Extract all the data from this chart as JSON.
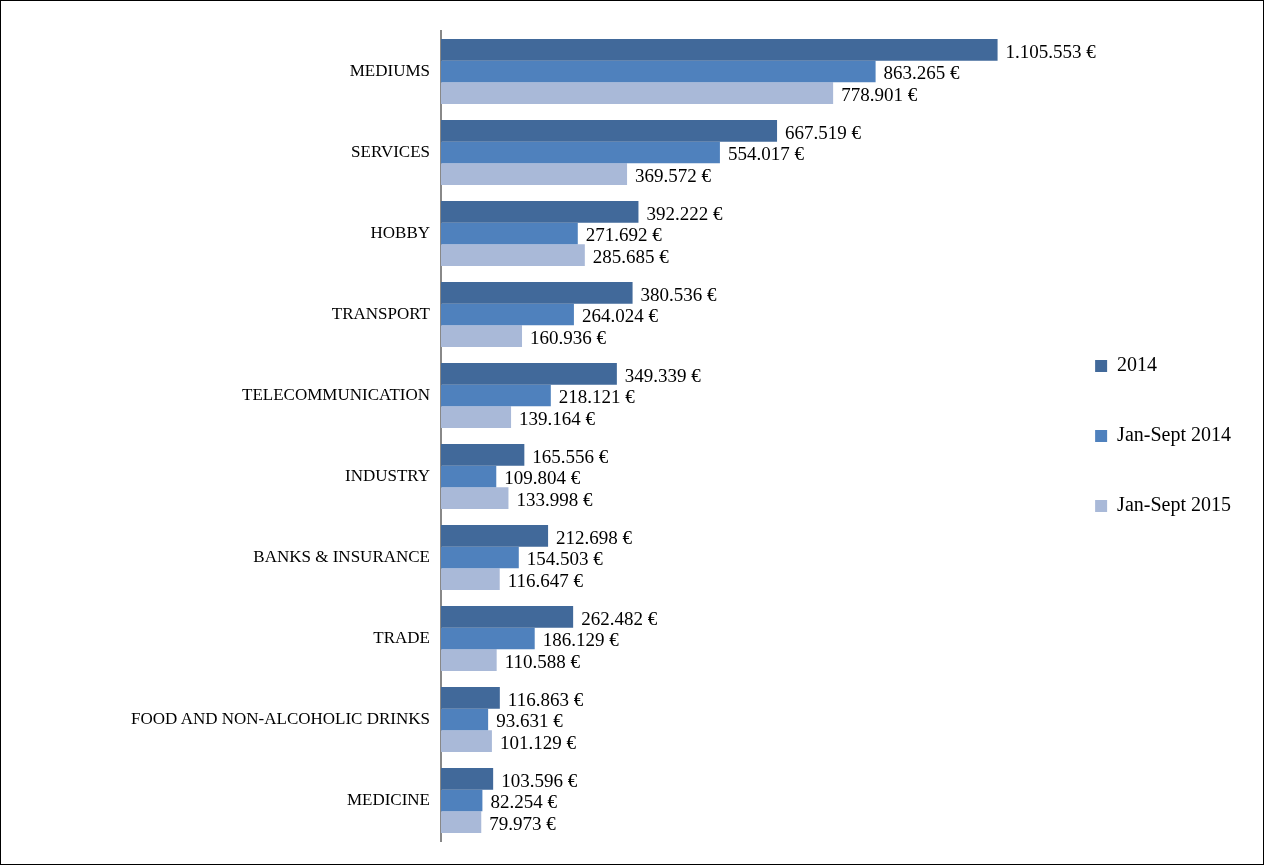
{
  "chart_data": {
    "type": "bar",
    "orientation": "horizontal",
    "categories": [
      "MEDIUMS",
      "SERVICES",
      "HOBBY",
      "TRANSPORT",
      "TELECOMMUNICATION",
      "INDUSTRY",
      "BANKS & INSURANCE",
      "TRADE",
      "FOOD AND NON-ALCOHOLIC DRINKS",
      "MEDICINE"
    ],
    "series": [
      {
        "name": "2014",
        "color": "#41699a",
        "values": [
          1105553,
          667519,
          392222,
          380536,
          349339,
          165556,
          212698,
          262482,
          116863,
          103596
        ],
        "value_labels": [
          "1.105.553 €",
          "667.519 €",
          "392.222 €",
          "380.536 €",
          "349.339 €",
          "165.556 €",
          "212.698 €",
          "262.482 €",
          "116.863 €",
          "103.596 €"
        ]
      },
      {
        "name": "Jan-Sept 2014",
        "color": "#4f81bd",
        "values": [
          863265,
          554017,
          271692,
          264024,
          218121,
          109804,
          154503,
          186129,
          93631,
          82254
        ],
        "value_labels": [
          "863.265 €",
          "554.017 €",
          "271.692 €",
          "264.024 €",
          "218.121 €",
          "109.804 €",
          "154.503 €",
          "186.129 €",
          "93.631 €",
          "82.254 €"
        ]
      },
      {
        "name": "Jan-Sept 2015",
        "color": "#a9b9d8",
        "values": [
          778901,
          369572,
          285685,
          160936,
          139164,
          133998,
          116647,
          110588,
          101129,
          79973
        ],
        "value_labels": [
          "778.901 €",
          "369.572 €",
          "285.685 €",
          "160.936 €",
          "139.164 €",
          "133.998 €",
          "116.647 €",
          "110.588 €",
          "101.129 €",
          "79.973 €"
        ]
      }
    ],
    "legend": "right"
  }
}
